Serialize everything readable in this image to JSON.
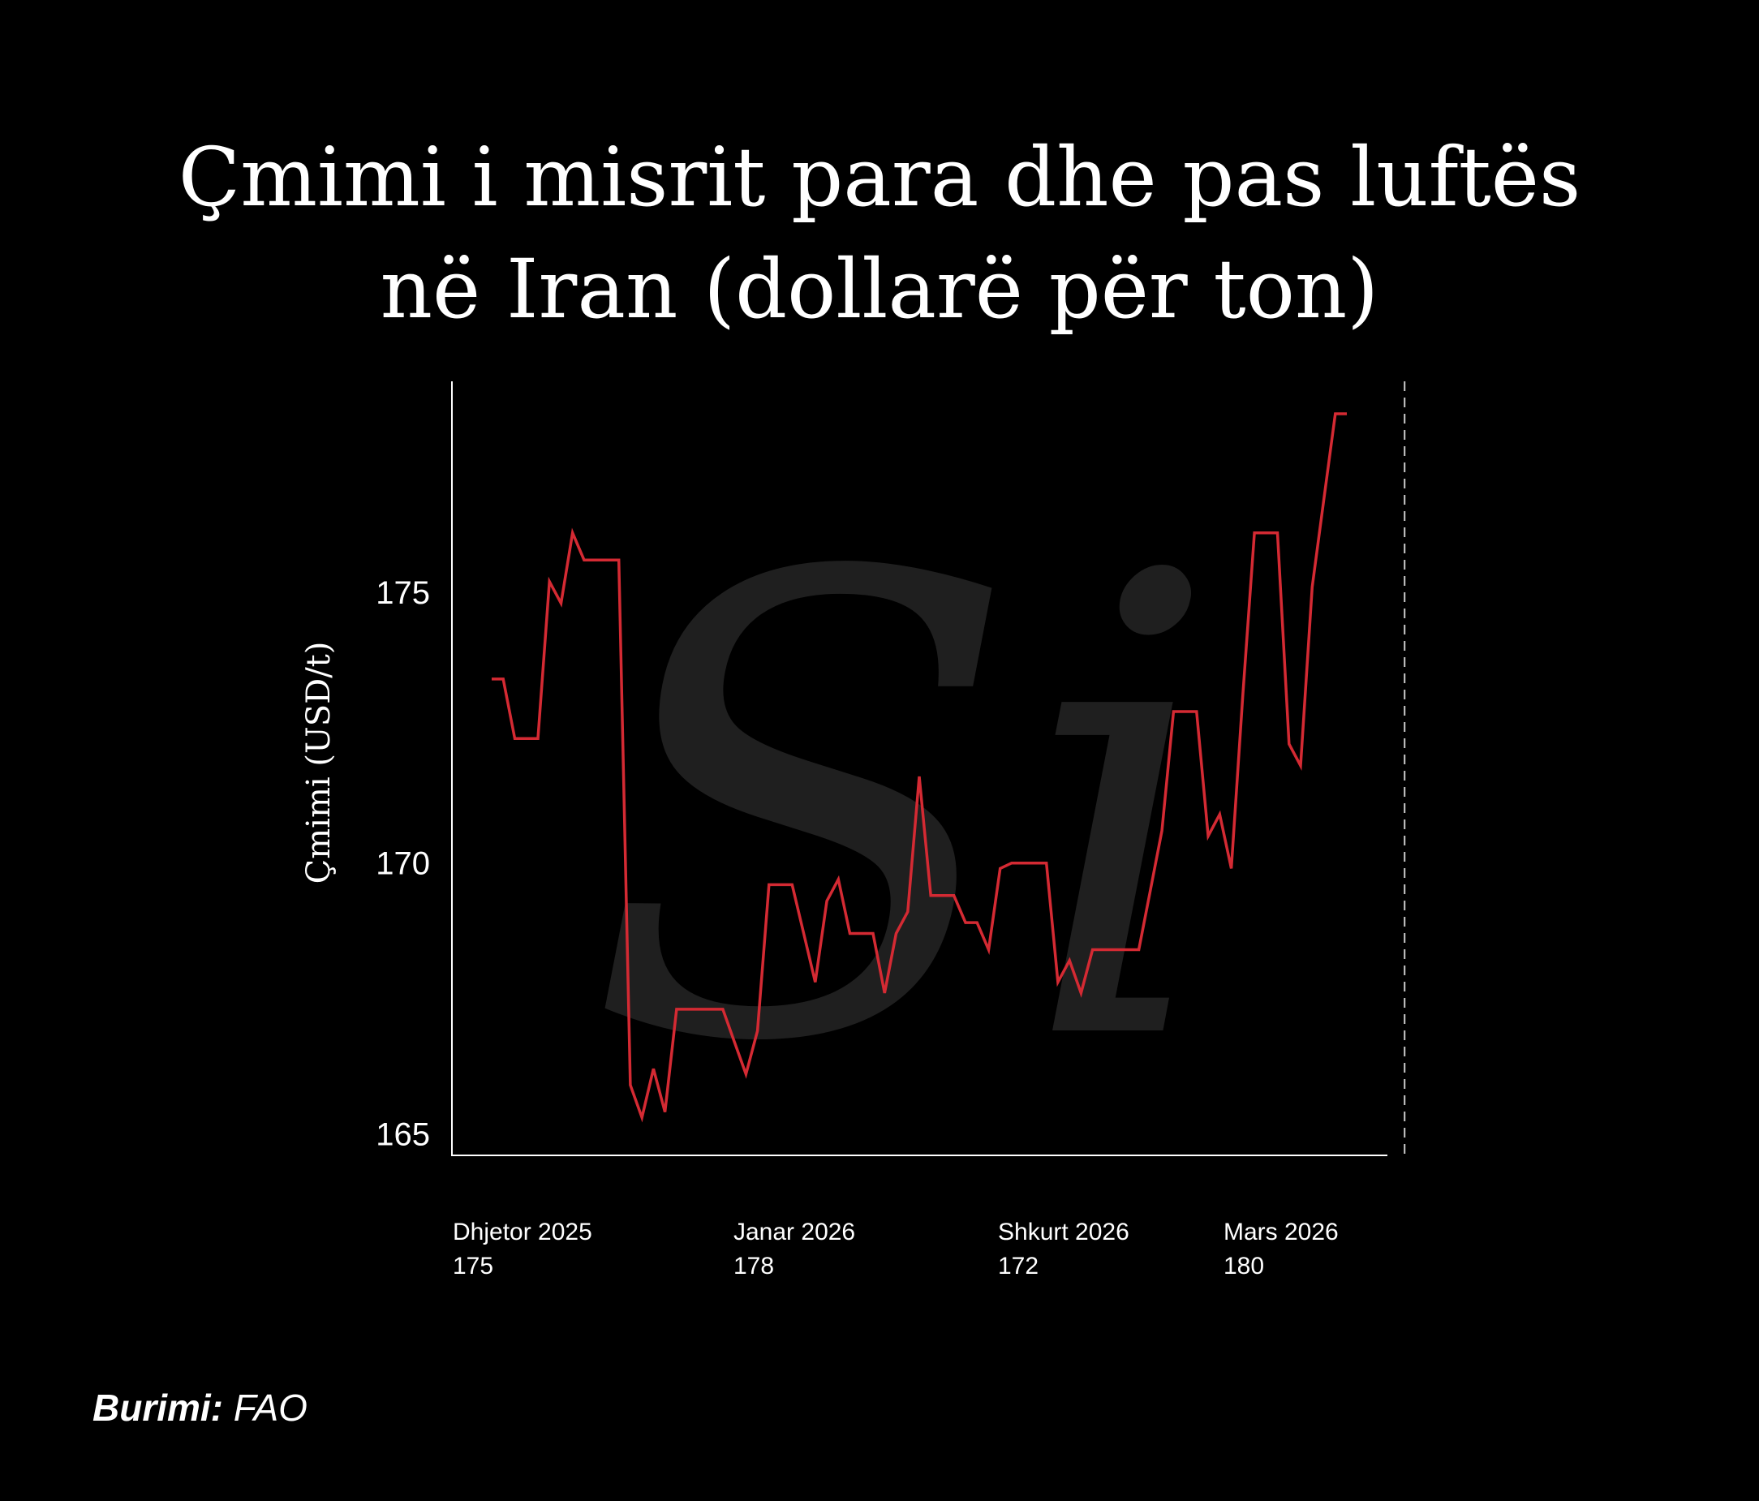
{
  "title_line1": "Çmimi i misrit para dhe pas luftës",
  "title_line2": "në Iran (dollarë për ton)",
  "source_label": "Burimi:",
  "source_value": "FAO",
  "watermark": "Si",
  "colors": {
    "background": "#000000",
    "line": "#d42a33",
    "text": "#ffffff",
    "axis": "#ffffff",
    "watermark": "#222222"
  },
  "chart_data": {
    "type": "line",
    "title": "Çmimi i misrit para dhe pas luftës në Iran (dollarë për ton)",
    "ylabel": "Çmimi (USD/t)",
    "xlabel": "",
    "ylim": [
      164.6,
      178.9
    ],
    "yticks": [
      165,
      170,
      175
    ],
    "grid": false,
    "legend": "none",
    "xticks": [
      {
        "label": "Dhjetor 2025",
        "value": "175",
        "index": 0
      },
      {
        "label": "Janar 2026",
        "value": "178",
        "index": 31
      },
      {
        "label": "Shkurt 2026",
        "value": "172",
        "index": 60
      },
      {
        "label": "Mars 2026",
        "value": "180",
        "index": 85
      }
    ],
    "war_marker_index": 79,
    "series": [
      {
        "values": [
          173.4,
          173.4,
          172.3,
          172.3,
          172.3,
          175.2,
          174.8,
          176.1,
          175.6,
          175.6,
          175.6,
          175.6,
          165.9,
          165.3,
          166.2,
          165.4,
          167.3,
          167.3,
          167.3,
          167.3,
          167.3,
          166.7,
          166.1,
          166.9,
          169.6,
          169.6,
          169.6,
          168.7,
          167.8,
          169.3,
          169.7,
          168.7,
          168.7,
          168.7,
          167.6,
          168.7,
          169.1,
          171.6,
          169.4,
          169.4,
          169.4,
          168.9,
          168.9,
          168.4,
          169.9,
          170.0,
          170.0,
          170.0,
          170.0,
          167.8,
          168.2,
          167.6,
          168.4,
          168.4,
          168.4,
          168.4,
          168.4,
          169.5,
          170.6,
          172.8,
          172.8,
          172.8,
          170.5,
          170.9,
          169.9,
          173.1,
          176.1,
          176.1,
          176.1,
          172.2,
          171.8,
          175.1,
          176.7,
          178.3,
          178.3
        ]
      }
    ]
  }
}
